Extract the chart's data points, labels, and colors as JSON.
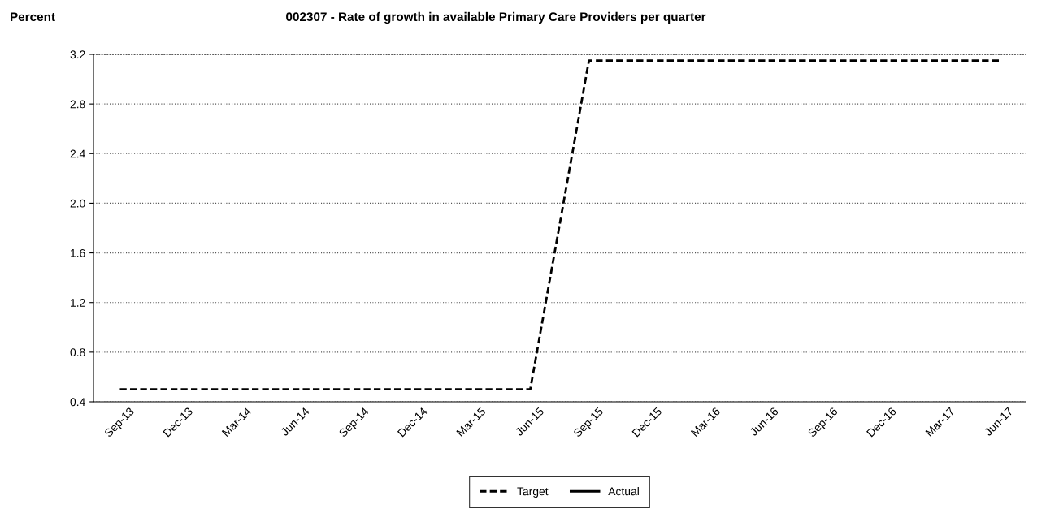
{
  "chart_data": {
    "type": "line",
    "title": "002307 - Rate of growth in available Primary Care Providers per quarter",
    "ylabel": "Percent",
    "categories": [
      "Sep-13",
      "Dec-13",
      "Mar-14",
      "Jun-14",
      "Sep-14",
      "Dec-14",
      "Mar-15",
      "Jun-15",
      "Sep-15",
      "Dec-15",
      "Mar-16",
      "Jun-16",
      "Sep-16",
      "Dec-16",
      "Mar-17",
      "Jun-17"
    ],
    "series": [
      {
        "name": "Target",
        "color": "#000000",
        "line_style": "dashed",
        "values": [
          0.5,
          0.5,
          0.5,
          0.5,
          0.5,
          0.5,
          0.5,
          0.5,
          3.15,
          3.15,
          3.15,
          3.15,
          3.15,
          3.15,
          3.15,
          3.15
        ]
      },
      {
        "name": "Actual",
        "color": "#000000",
        "line_style": "solid",
        "values": [
          null,
          null,
          null,
          null,
          null,
          null,
          null,
          null,
          null,
          null,
          null,
          null,
          null,
          null,
          null,
          null
        ]
      }
    ],
    "ylim": [
      0.4,
      3.2
    ],
    "yticks": [
      0.4,
      0.8,
      1.2,
      1.6,
      {
        "value": 2,
        "label": "2.0"
      },
      2.4,
      2.8,
      3.2
    ],
    "grid": "y",
    "legend": "bottom",
    "marker": "none"
  }
}
